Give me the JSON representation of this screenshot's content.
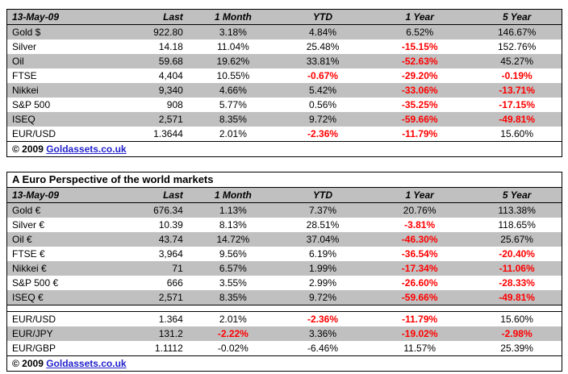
{
  "colors": {
    "shaded_row_bg": "#C0C0C0",
    "negative_value": "#FF0000",
    "link_blue": "#2222CC"
  },
  "chart_data": [
    {
      "type": "table",
      "date": "13-May-09",
      "columns": [
        "Last",
        "1 Month",
        "YTD",
        "1 Year",
        "5 Year"
      ],
      "rows": [
        {
          "name": "Gold $",
          "values": [
            "922.80",
            "3.18%",
            "4.84%",
            "6.52%",
            "146.67%"
          ],
          "red": [
            false,
            false,
            false,
            false,
            false
          ]
        },
        {
          "name": "Silver",
          "values": [
            "14.18",
            "11.04%",
            "25.48%",
            "-15.15%",
            "152.76%"
          ],
          "red": [
            false,
            false,
            false,
            true,
            false
          ]
        },
        {
          "name": "Oil",
          "values": [
            "59.68",
            "19.62%",
            "33.81%",
            "-52.63%",
            "45.27%"
          ],
          "red": [
            false,
            false,
            false,
            true,
            false
          ]
        },
        {
          "name": "FTSE",
          "values": [
            "4,404",
            "10.55%",
            "-0.67%",
            "-29.20%",
            "-0.19%"
          ],
          "red": [
            false,
            false,
            true,
            true,
            true
          ]
        },
        {
          "name": "Nikkei",
          "values": [
            "9,340",
            "4.66%",
            "5.42%",
            "-33.06%",
            "-13.71%"
          ],
          "red": [
            false,
            false,
            false,
            true,
            true
          ]
        },
        {
          "name": "S&P 500",
          "values": [
            "908",
            "5.77%",
            "0.56%",
            "-35.25%",
            "-17.15%"
          ],
          "red": [
            false,
            false,
            false,
            true,
            true
          ]
        },
        {
          "name": "ISEQ",
          "values": [
            "2,571",
            "8.35%",
            "9.72%",
            "-59.66%",
            "-49.81%"
          ],
          "red": [
            false,
            false,
            false,
            true,
            true
          ]
        },
        {
          "name": "EUR/USD",
          "values": [
            "1.3644",
            "2.01%",
            "-2.36%",
            "-11.79%",
            "15.60%"
          ],
          "red": [
            false,
            false,
            true,
            true,
            false
          ]
        }
      ],
      "footer_copyright": "© 2009",
      "footer_link": "Goldassets.co.uk"
    },
    {
      "type": "table",
      "title": "A Euro Perspective of the world markets",
      "date": "13-May-09",
      "columns": [
        "Last",
        "1 Month",
        "YTD",
        "1 Year",
        "5 Year"
      ],
      "rows": [
        {
          "name": "Gold €",
          "values": [
            "676.34",
            "1.13%",
            "7.37%",
            "20.76%",
            "113.38%"
          ],
          "red": [
            false,
            false,
            false,
            false,
            false
          ]
        },
        {
          "name": "Silver €",
          "values": [
            "10.39",
            "8.13%",
            "28.51%",
            "-3.81%",
            "118.65%"
          ],
          "red": [
            false,
            false,
            false,
            true,
            false
          ]
        },
        {
          "name": "Oil €",
          "values": [
            "43.74",
            "14.72%",
            "37.04%",
            "-46.30%",
            "25.67%"
          ],
          "red": [
            false,
            false,
            false,
            true,
            false
          ]
        },
        {
          "name": "FTSE €",
          "values": [
            "3,964",
            "9.56%",
            "6.19%",
            "-36.54%",
            "-20.40%"
          ],
          "red": [
            false,
            false,
            false,
            true,
            true
          ]
        },
        {
          "name": "Nikkei €",
          "values": [
            "71",
            "6.57%",
            "1.99%",
            "-17.34%",
            "-11.06%"
          ],
          "red": [
            false,
            false,
            false,
            true,
            true
          ]
        },
        {
          "name": "S&P 500 €",
          "values": [
            "666",
            "3.55%",
            "2.99%",
            "-26.60%",
            "-28.33%"
          ],
          "red": [
            false,
            false,
            false,
            true,
            true
          ]
        },
        {
          "name": "ISEQ €",
          "values": [
            "2,571",
            "8.35%",
            "9.72%",
            "-59.66%",
            "-49.81%"
          ],
          "red": [
            false,
            false,
            false,
            true,
            true
          ]
        },
        {
          "separator": true
        },
        {
          "name": "EUR/USD",
          "values": [
            "1.364",
            "2.01%",
            "-2.36%",
            "-11.79%",
            "15.60%"
          ],
          "red": [
            false,
            false,
            true,
            true,
            false
          ]
        },
        {
          "name": "EUR/JPY",
          "values": [
            "131.2",
            "-2.22%",
            "3.36%",
            "-19.02%",
            "-2.98%"
          ],
          "red": [
            false,
            true,
            false,
            true,
            true
          ]
        },
        {
          "name": "EUR/GBP",
          "values": [
            "1.1112",
            "-0.02%",
            "-6.46%",
            "11.57%",
            "25.39%"
          ],
          "red": [
            false,
            false,
            false,
            false,
            false
          ]
        }
      ],
      "footer_copyright": "© 2009",
      "footer_link": "Goldassets.co.uk"
    }
  ]
}
